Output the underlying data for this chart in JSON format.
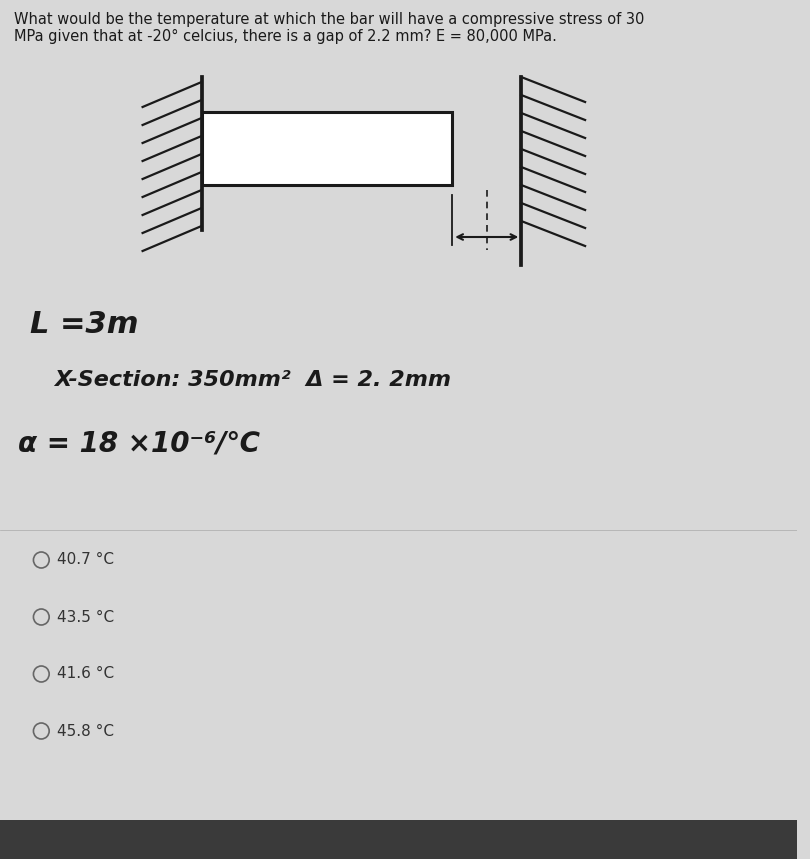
{
  "question": "What would be the temperature at which the bar will have a compressive stress of 30\nMPa given that at -20° celcius, there is a gap of 2.2 mm? E = 80,000 MPa.",
  "label_L": "L =3m",
  "label_section": "X-Section: 350mm²  Δ = 2. 2mm",
  "label_alpha": "α = 18 ×10⁻⁶/℃",
  "choices": [
    "40.7 °C",
    "43.5 °C",
    "41.6 °C",
    "45.8 °C"
  ],
  "bg_color": "#d8d8d8",
  "paper_color": "#e8e7e4",
  "text_color": "#1a1a1a",
  "draw_color": "#1a1a1a",
  "font_size_question": 10.5,
  "font_size_labels": 15,
  "font_size_choices": 10
}
